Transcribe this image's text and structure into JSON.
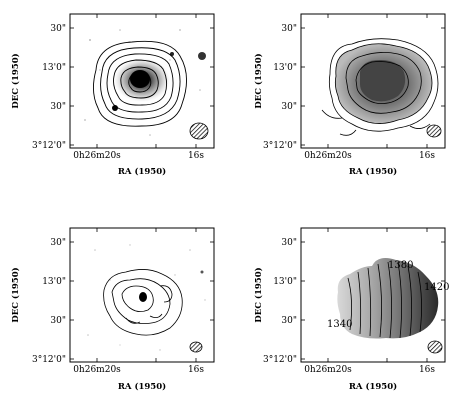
{
  "figure": {
    "x_axis_label": "RA (1950)",
    "y_axis_label": "DEC (1950)",
    "x_tick_labels": [
      "0h26m20s",
      "16s"
    ],
    "y_tick_labels": [
      "30\"",
      "13'0\"",
      "30\"",
      "3°12'0\""
    ],
    "panels": [
      {
        "id": "top-left",
        "content": "optical image with HI column density contours"
      },
      {
        "id": "top-right",
        "content": "HI total intensity greyscale with contours"
      },
      {
        "id": "bottom-left",
        "content": "optical image with HI contours"
      },
      {
        "id": "bottom-right",
        "content": "HI velocity field",
        "velocity_labels": [
          "1380",
          "1420",
          "1340"
        ]
      }
    ]
  }
}
